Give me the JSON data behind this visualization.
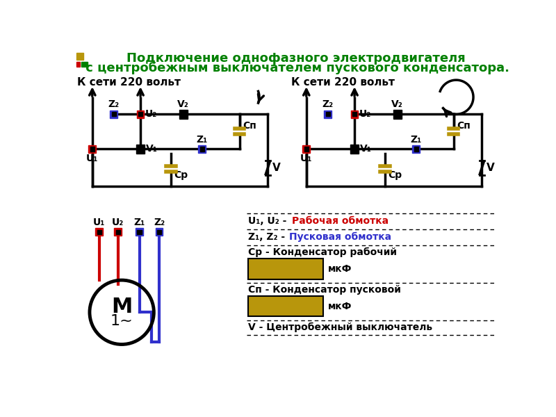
{
  "title_line1": "Подключение однофазного электродвигателя",
  "title_line2": " с центробежным выключателем пускового конденсатора.",
  "title_color": "#008000",
  "bg_color": "#ffffff",
  "red_color": "#cc0000",
  "blue_color": "#3030cc",
  "black_color": "#000000",
  "gold_color": "#b8960c",
  "legend_red": "Рабочая обмотка",
  "legend_blue": "Пусковая обмотка",
  "cp_label": "Ср - Конденсатор рабочий",
  "cn_label": "Сп - Конденсатор пусковой",
  "v_label": "V - Центробежный выключатель",
  "mkf": "мкФ",
  "k_seti": "К сети 220 вольт"
}
